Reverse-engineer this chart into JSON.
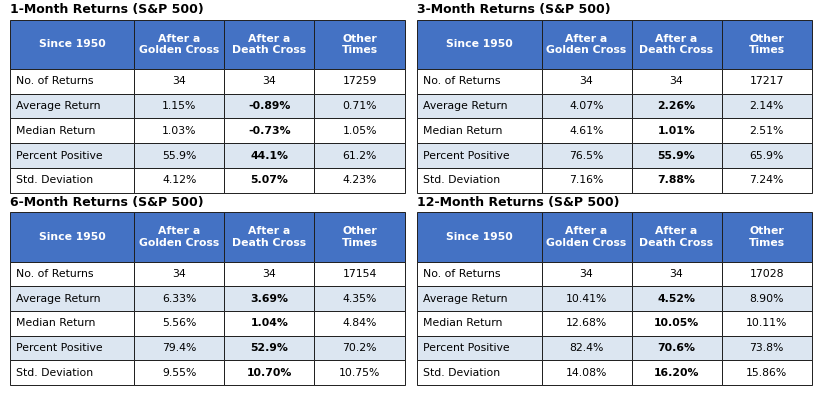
{
  "tables": [
    {
      "title": "1-Month Returns (S&P 500)",
      "rows": [
        [
          "Since 1950",
          "After a\nGolden Cross",
          "After a\nDeath Cross",
          "Other\nTimes"
        ],
        [
          "No. of Returns",
          "34",
          "34",
          "17259"
        ],
        [
          "Average Return",
          "1.15%",
          "-0.89%",
          "0.71%"
        ],
        [
          "Median Return",
          "1.03%",
          "-0.73%",
          "1.05%"
        ],
        [
          "Percent Positive",
          "55.9%",
          "44.1%",
          "61.2%"
        ],
        [
          "Std. Deviation",
          "4.12%",
          "5.07%",
          "4.23%"
        ]
      ]
    },
    {
      "title": "3-Month Returns (S&P 500)",
      "rows": [
        [
          "Since 1950",
          "After a\nGolden Cross",
          "After a\nDeath Cross",
          "Other\nTimes"
        ],
        [
          "No. of Returns",
          "34",
          "34",
          "17217"
        ],
        [
          "Average Return",
          "4.07%",
          "2.26%",
          "2.14%"
        ],
        [
          "Median Return",
          "4.61%",
          "1.01%",
          "2.51%"
        ],
        [
          "Percent Positive",
          "76.5%",
          "55.9%",
          "65.9%"
        ],
        [
          "Std. Deviation",
          "7.16%",
          "7.88%",
          "7.24%"
        ]
      ]
    },
    {
      "title": "6-Month Returns (S&P 500)",
      "rows": [
        [
          "Since 1950",
          "After a\nGolden Cross",
          "After a\nDeath Cross",
          "Other\nTimes"
        ],
        [
          "No. of Returns",
          "34",
          "34",
          "17154"
        ],
        [
          "Average Return",
          "6.33%",
          "3.69%",
          "4.35%"
        ],
        [
          "Median Return",
          "5.56%",
          "1.04%",
          "4.84%"
        ],
        [
          "Percent Positive",
          "79.4%",
          "52.9%",
          "70.2%"
        ],
        [
          "Std. Deviation",
          "9.55%",
          "10.70%",
          "10.75%"
        ]
      ]
    },
    {
      "title": "12-Month Returns (S&P 500)",
      "rows": [
        [
          "Since 1950",
          "After a\nGolden Cross",
          "After a\nDeath Cross",
          "Other\nTimes"
        ],
        [
          "No. of Returns",
          "34",
          "34",
          "17028"
        ],
        [
          "Average Return",
          "10.41%",
          "4.52%",
          "8.90%"
        ],
        [
          "Median Return",
          "12.68%",
          "10.05%",
          "10.11%"
        ],
        [
          "Percent Positive",
          "82.4%",
          "70.6%",
          "73.8%"
        ],
        [
          "Std. Deviation",
          "14.08%",
          "16.20%",
          "15.86%"
        ]
      ]
    }
  ],
  "header_bg": "#4472C4",
  "header_fg": "#FFFFFF",
  "row_bg_odd": "#FFFFFF",
  "row_bg_even": "#DCE6F1",
  "row_fg": "#000000",
  "col0_fg": "#000000",
  "border_color": "#1F1F1F",
  "title_color": "#000000"
}
